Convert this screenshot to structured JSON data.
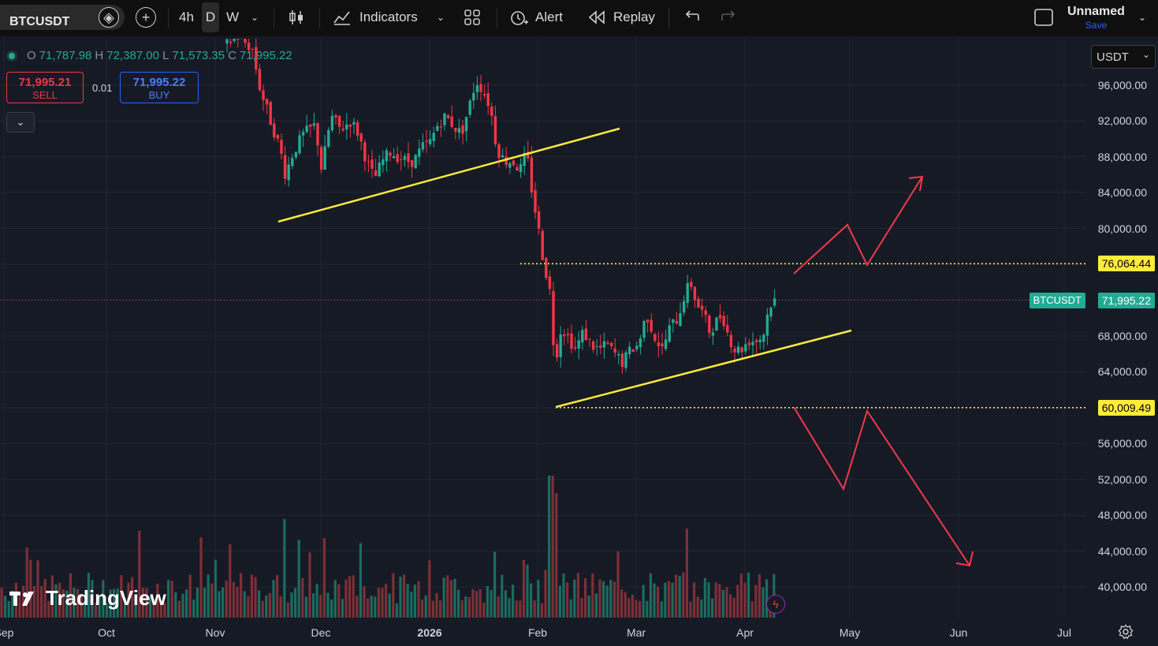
{
  "toolbar": {
    "symbol": "BTCUSDT",
    "intervals": [
      "4h",
      "D",
      "W"
    ],
    "active_interval": "D",
    "indicators_label": "Indicators",
    "alert_label": "Alert",
    "replay_label": "Replay",
    "layout_name": "Unnamed",
    "save_label": "Save"
  },
  "legend": {
    "o_label": "O",
    "o_value": "71,787.98",
    "h_label": "H",
    "h_value": "72,387.00",
    "l_label": "L",
    "l_value": "71,573.35",
    "c_label": "C",
    "c_value": "71,995.22"
  },
  "trade": {
    "sell_price": "71,995.21",
    "sell_label": "SELL",
    "spread": "0.01",
    "buy_price": "71,995.22",
    "buy_label": "BUY"
  },
  "currency": "USDT",
  "colors": {
    "up": "#22ab94",
    "down": "#f23645",
    "trendline": "#ffeb3b",
    "arrow": "#f0394a",
    "sell": "#f23645",
    "buy": "#2962ff",
    "accent": "#2962ff"
  },
  "logo_text": "TradingView",
  "chart_data": {
    "type": "candlestick",
    "symbol": "BTCUSDT",
    "interval": "D",
    "price_axis": [
      "96,000.00",
      "92,000.00",
      "88,000.00",
      "84,000.00",
      "80,000.00",
      "76,000.00",
      "72,000.00",
      "68,000.00",
      "64,000.00",
      "60,000.00",
      "56,000.00",
      "52,000.00",
      "48,000.00",
      "44,000.00",
      "40,000.00"
    ],
    "time_axis": [
      {
        "label": "Sep",
        "bold": false
      },
      {
        "label": "Oct",
        "bold": false
      },
      {
        "label": "Nov",
        "bold": false
      },
      {
        "label": "Dec",
        "bold": false
      },
      {
        "label": "2026",
        "bold": true
      },
      {
        "label": "Feb",
        "bold": false
      },
      {
        "label": "Mar",
        "bold": false
      },
      {
        "label": "Apr",
        "bold": false
      },
      {
        "label": "May",
        "bold": false
      },
      {
        "label": "Jun",
        "bold": false
      },
      {
        "label": "Jul",
        "bold": false
      }
    ],
    "levels": [
      {
        "label": "76,064.44",
        "price": 76064.44
      },
      {
        "label": "60,009.49",
        "price": 60009.49
      }
    ],
    "last_price": {
      "name": "BTCUSDT",
      "label": "71,995.22",
      "price": 71995.22
    },
    "ylim": [
      37000,
      101000
    ],
    "grid": true
  }
}
